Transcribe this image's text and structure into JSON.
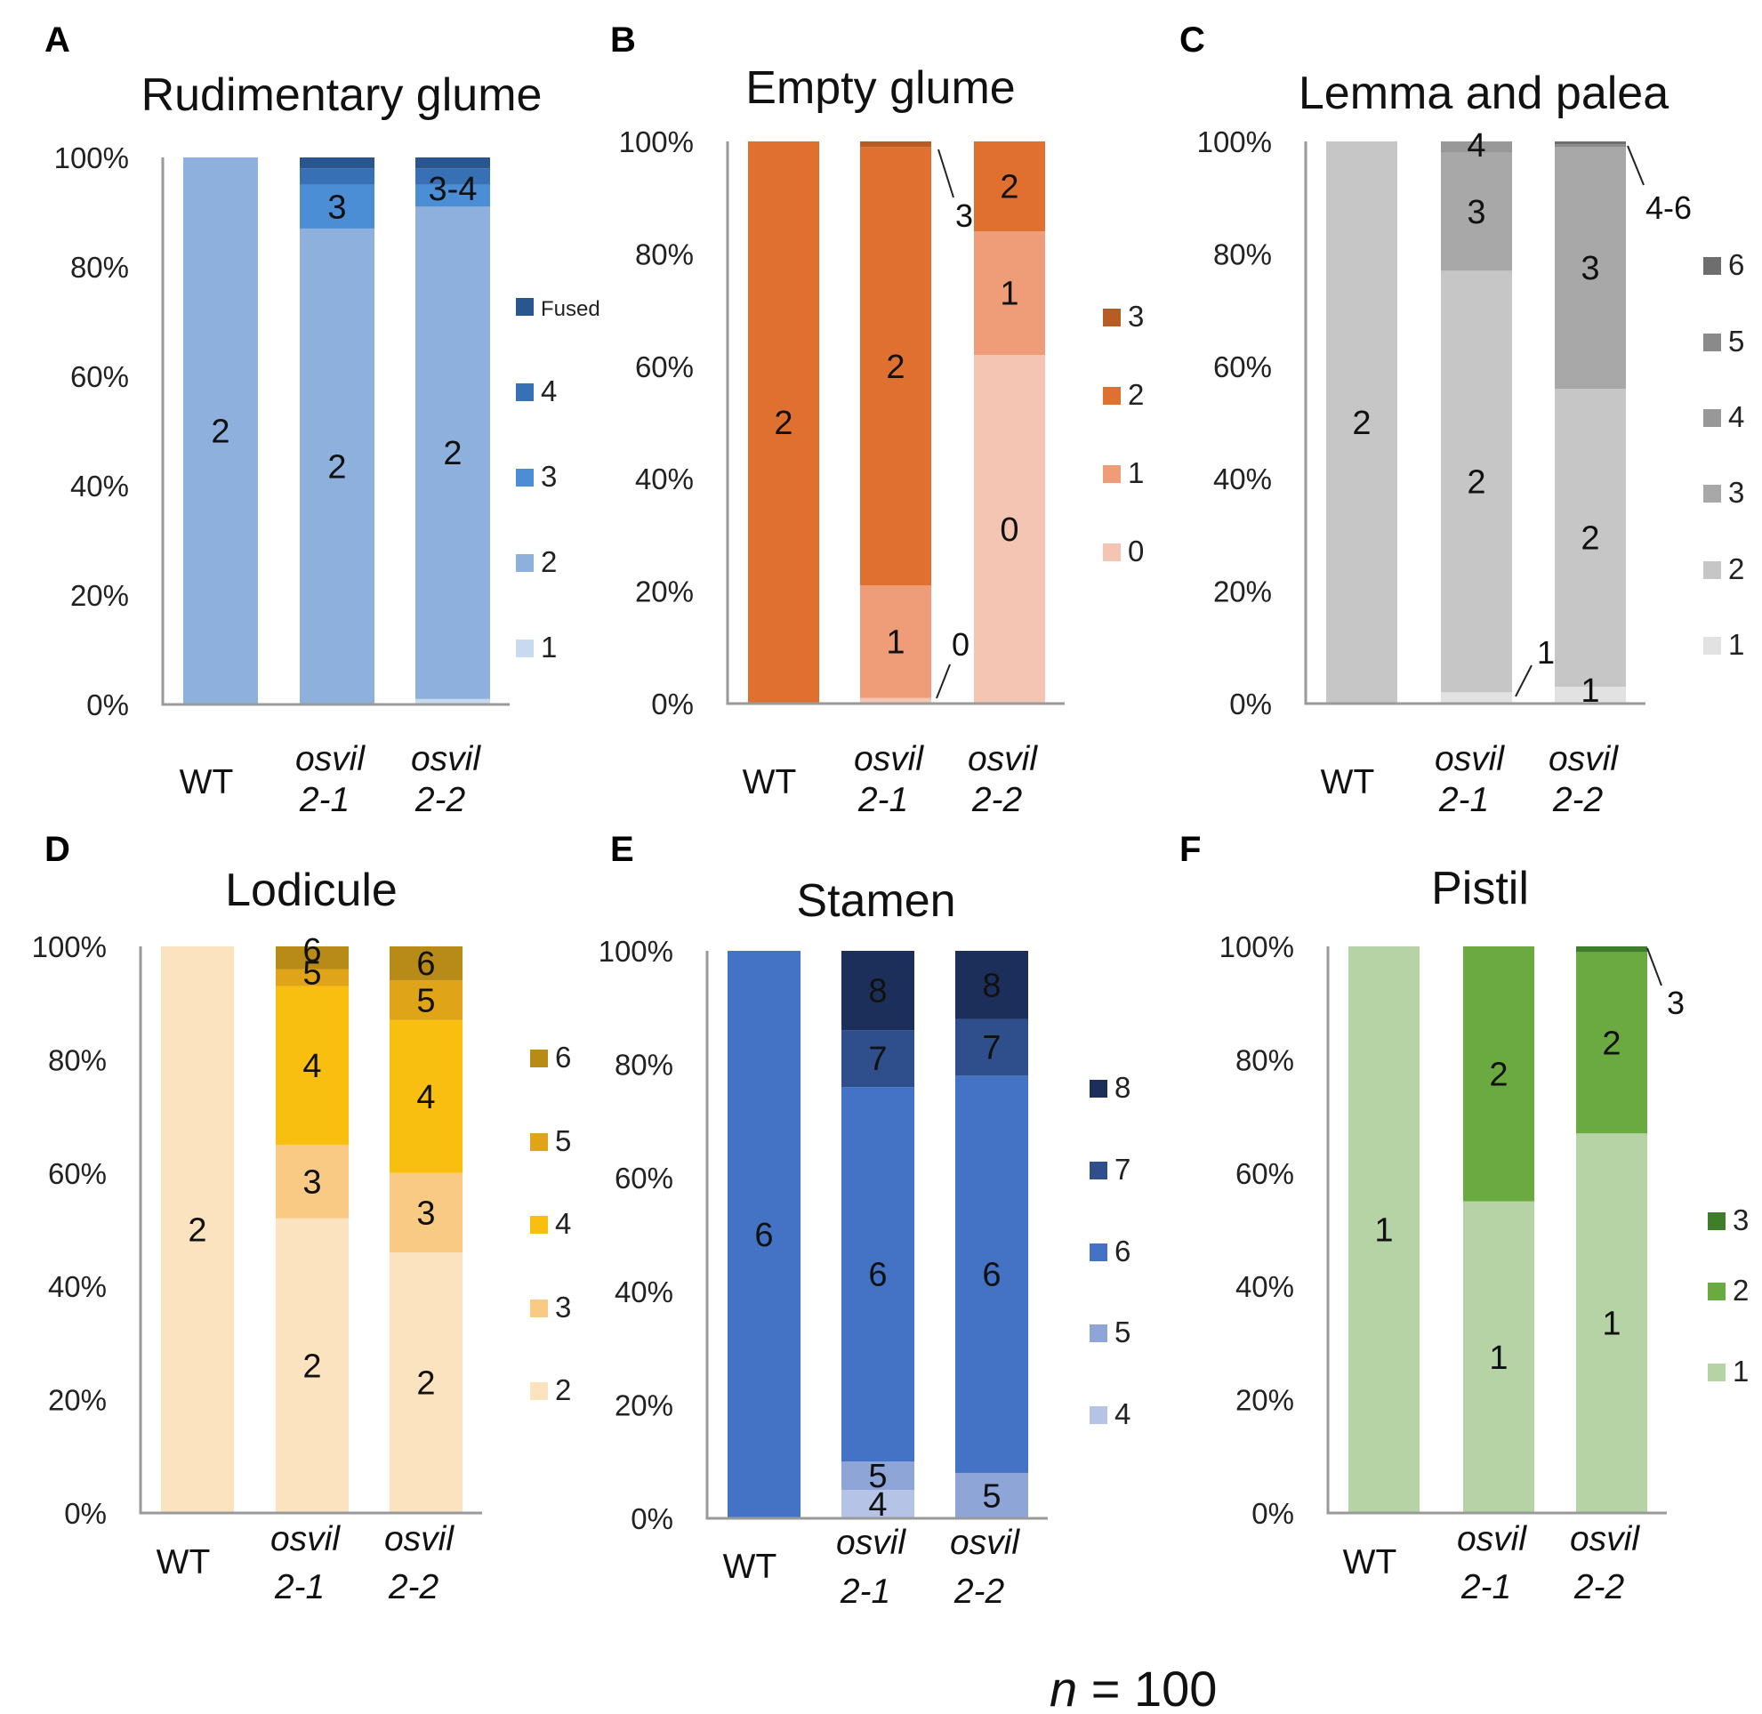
{
  "footnote": {
    "var": "n",
    "rest": " = 100"
  },
  "chart_data": [
    {
      "id": "A",
      "letter": "A",
      "title": "Rudimentary glume",
      "type": "stacked-bar",
      "ylim": [
        0,
        100
      ],
      "yticks": [
        "0%",
        "20%",
        "40%",
        "60%",
        "80%",
        "100%"
      ],
      "categories": [
        {
          "key": "WT",
          "line1": "WT",
          "line2": "",
          "italic": false
        },
        {
          "key": "osvil 2-1",
          "line1": "osvil",
          "line2": "2-1",
          "italic": true
        },
        {
          "key": "osvil 2-2",
          "line1": "osvil",
          "line2": "2-2",
          "italic": true
        }
      ],
      "series": [
        {
          "name": "1",
          "color": "#c9d9ee",
          "values": [
            0,
            0,
            1
          ]
        },
        {
          "name": "2",
          "color": "#8eb0dc",
          "values": [
            100,
            87,
            90
          ]
        },
        {
          "name": "3",
          "color": "#4c8ed6",
          "values": [
            0,
            8,
            4
          ]
        },
        {
          "name": "4",
          "color": "#3770b4",
          "values": [
            0,
            3,
            3
          ]
        },
        {
          "name": "Fused",
          "color": "#29568e",
          "values": [
            0,
            2,
            2
          ]
        }
      ],
      "seg_labels": [
        {
          "text": "2",
          "bar": 0,
          "series": "2"
        },
        {
          "text": "2",
          "bar": 1,
          "series": "2"
        },
        {
          "text": "3",
          "bar": 1,
          "series": "3"
        },
        {
          "text": "2",
          "bar": 2,
          "series": "2"
        },
        {
          "text": "3-4",
          "bar": 2,
          "series": "3"
        }
      ],
      "annotations": []
    },
    {
      "id": "B",
      "letter": "B",
      "title": "Empty glume",
      "type": "stacked-bar",
      "ylim": [
        0,
        100
      ],
      "yticks": [
        "0%",
        "20%",
        "40%",
        "60%",
        "80%",
        "100%"
      ],
      "categories": [
        {
          "key": "WT",
          "line1": "WT",
          "line2": "",
          "italic": false
        },
        {
          "key": "osvil 2-1",
          "line1": "osvil",
          "line2": "2-1",
          "italic": true
        },
        {
          "key": "osvil 2-2",
          "line1": "osvil",
          "line2": "2-2",
          "italic": true
        }
      ],
      "series": [
        {
          "name": "0",
          "color": "#f5c5b3",
          "values": [
            0,
            1,
            62
          ]
        },
        {
          "name": "1",
          "color": "#ef9c78",
          "values": [
            0,
            20,
            22
          ]
        },
        {
          "name": "2",
          "color": "#e07030",
          "values": [
            100,
            78,
            16
          ]
        },
        {
          "name": "3",
          "color": "#b85c25",
          "values": [
            0,
            1,
            0
          ]
        }
      ],
      "seg_labels": [
        {
          "text": "2",
          "bar": 0,
          "series": "2"
        },
        {
          "text": "1",
          "bar": 1,
          "series": "1"
        },
        {
          "text": "2",
          "bar": 1,
          "series": "2"
        },
        {
          "text": "0",
          "bar": 2,
          "series": "0"
        },
        {
          "text": "1",
          "bar": 2,
          "series": "1"
        },
        {
          "text": "2",
          "bar": 2,
          "series": "2"
        }
      ],
      "annotations": [
        {
          "text": "3"
        },
        {
          "text": "0"
        }
      ]
    },
    {
      "id": "C",
      "letter": "C",
      "title": "Lemma and palea",
      "type": "stacked-bar",
      "ylim": [
        0,
        100
      ],
      "yticks": [
        "0%",
        "20%",
        "40%",
        "60%",
        "80%",
        "100%"
      ],
      "categories": [
        {
          "key": "WT",
          "line1": "WT",
          "line2": "",
          "italic": false
        },
        {
          "key": "osvil 2-1",
          "line1": "osvil",
          "line2": "2-1",
          "italic": true
        },
        {
          "key": "osvil 2-2",
          "line1": "osvil",
          "line2": "2-2",
          "italic": true
        }
      ],
      "series": [
        {
          "name": "1",
          "color": "#e2e2e2",
          "values": [
            0,
            2,
            3
          ]
        },
        {
          "name": "2",
          "color": "#c6c6c6",
          "values": [
            100,
            75,
            53
          ]
        },
        {
          "name": "3",
          "color": "#a8a8a8",
          "values": [
            0,
            21,
            43
          ]
        },
        {
          "name": "4",
          "color": "#989898",
          "values": [
            0,
            2,
            0
          ]
        },
        {
          "name": "5",
          "color": "#8a8a8a",
          "values": [
            0,
            0,
            0.5
          ]
        },
        {
          "name": "6",
          "color": "#6e6e6e",
          "values": [
            0,
            0,
            0.5
          ]
        }
      ],
      "seg_labels": [
        {
          "text": "2",
          "bar": 0,
          "series": "2"
        },
        {
          "text": "2",
          "bar": 1,
          "series": "2"
        },
        {
          "text": "3",
          "bar": 1,
          "series": "3"
        },
        {
          "text": "4",
          "bar": 1,
          "series": "4"
        },
        {
          "text": "1",
          "bar": 2,
          "series": "1"
        },
        {
          "text": "2",
          "bar": 2,
          "series": "2"
        },
        {
          "text": "3",
          "bar": 2,
          "series": "3"
        }
      ],
      "annotations": [
        {
          "text": "4-6"
        },
        {
          "text": "1"
        }
      ]
    },
    {
      "id": "D",
      "letter": "D",
      "title": "Lodicule",
      "type": "stacked-bar",
      "ylim": [
        0,
        100
      ],
      "yticks": [
        "0%",
        "20%",
        "40%",
        "60%",
        "80%",
        "100%"
      ],
      "categories": [
        {
          "key": "WT",
          "line1": "WT",
          "line2": "",
          "italic": false
        },
        {
          "key": "osvil 2-1",
          "line1": "osvil",
          "line2": "2-1",
          "italic": true
        },
        {
          "key": "osvil 2-2",
          "line1": "osvil",
          "line2": "2-2",
          "italic": true
        }
      ],
      "series": [
        {
          "name": "2",
          "color": "#fbe3c0",
          "values": [
            100,
            52,
            46
          ]
        },
        {
          "name": "3",
          "color": "#f9ca84",
          "values": [
            0,
            13,
            14
          ]
        },
        {
          "name": "4",
          "color": "#f9bf10",
          "values": [
            0,
            28,
            27
          ]
        },
        {
          "name": "5",
          "color": "#e0a418",
          "values": [
            0,
            3,
            7
          ]
        },
        {
          "name": "6",
          "color": "#b88a18",
          "values": [
            0,
            4,
            6
          ]
        }
      ],
      "seg_labels": [
        {
          "text": "2",
          "bar": 0,
          "series": "2"
        },
        {
          "text": "2",
          "bar": 1,
          "series": "2"
        },
        {
          "text": "3",
          "bar": 1,
          "series": "3"
        },
        {
          "text": "4",
          "bar": 1,
          "series": "4"
        },
        {
          "text": "5",
          "bar": 1,
          "series": "5"
        },
        {
          "text": "6",
          "bar": 1,
          "series": "6"
        },
        {
          "text": "2",
          "bar": 2,
          "series": "2"
        },
        {
          "text": "3",
          "bar": 2,
          "series": "3"
        },
        {
          "text": "4",
          "bar": 2,
          "series": "4"
        },
        {
          "text": "5",
          "bar": 2,
          "series": "5"
        },
        {
          "text": "6",
          "bar": 2,
          "series": "6"
        }
      ],
      "annotations": []
    },
    {
      "id": "E",
      "letter": "E",
      "title": "Stamen",
      "type": "stacked-bar",
      "ylim": [
        0,
        100
      ],
      "yticks": [
        "0%",
        "20%",
        "40%",
        "60%",
        "80%",
        "100%"
      ],
      "categories": [
        {
          "key": "WT",
          "line1": "WT",
          "line2": "",
          "italic": false
        },
        {
          "key": "osvil 2-1",
          "line1": "osvil",
          "line2": "2-1",
          "italic": true
        },
        {
          "key": "osvil 2-2",
          "line1": "osvil",
          "line2": "2-2",
          "italic": true
        }
      ],
      "series": [
        {
          "name": "4",
          "color": "#b4c3e6",
          "values": [
            0,
            5,
            0
          ]
        },
        {
          "name": "5",
          "color": "#8ea5d8",
          "values": [
            0,
            5,
            8
          ]
        },
        {
          "name": "6",
          "color": "#4472c4",
          "values": [
            100,
            66,
            70
          ]
        },
        {
          "name": "7",
          "color": "#2e4e8c",
          "values": [
            0,
            10,
            10
          ]
        },
        {
          "name": "8",
          "color": "#1c2f5a",
          "values": [
            0,
            14,
            12
          ]
        }
      ],
      "seg_labels": [
        {
          "text": "6",
          "bar": 0,
          "series": "6"
        },
        {
          "text": "4",
          "bar": 1,
          "series": "4"
        },
        {
          "text": "5",
          "bar": 1,
          "series": "5"
        },
        {
          "text": "6",
          "bar": 1,
          "series": "6"
        },
        {
          "text": "7",
          "bar": 1,
          "series": "7"
        },
        {
          "text": "8",
          "bar": 1,
          "series": "8"
        },
        {
          "text": "5",
          "bar": 2,
          "series": "5"
        },
        {
          "text": "6",
          "bar": 2,
          "series": "6"
        },
        {
          "text": "7",
          "bar": 2,
          "series": "7"
        },
        {
          "text": "8",
          "bar": 2,
          "series": "8"
        }
      ],
      "annotations": []
    },
    {
      "id": "F",
      "letter": "F",
      "title": "Pistil",
      "type": "stacked-bar",
      "ylim": [
        0,
        100
      ],
      "yticks": [
        "0%",
        "20%",
        "40%",
        "60%",
        "80%",
        "100%"
      ],
      "categories": [
        {
          "key": "WT",
          "line1": "WT",
          "line2": "",
          "italic": false
        },
        {
          "key": "osvil 2-1",
          "line1": "osvil",
          "line2": "2-1",
          "italic": true
        },
        {
          "key": "osvil 2-2",
          "line1": "osvil",
          "line2": "2-2",
          "italic": true
        }
      ],
      "series": [
        {
          "name": "1",
          "color": "#b6d3a6",
          "values": [
            100,
            55,
            67
          ]
        },
        {
          "name": "2",
          "color": "#6aaa40",
          "values": [
            0,
            45,
            32
          ]
        },
        {
          "name": "3",
          "color": "#3e7e2a",
          "values": [
            0,
            0,
            1
          ]
        }
      ],
      "seg_labels": [
        {
          "text": "1",
          "bar": 0,
          "series": "1"
        },
        {
          "text": "1",
          "bar": 1,
          "series": "1"
        },
        {
          "text": "2",
          "bar": 1,
          "series": "2"
        },
        {
          "text": "1",
          "bar": 2,
          "series": "1"
        },
        {
          "text": "2",
          "bar": 2,
          "series": "2"
        }
      ],
      "annotations": [
        {
          "text": "3"
        }
      ]
    }
  ]
}
